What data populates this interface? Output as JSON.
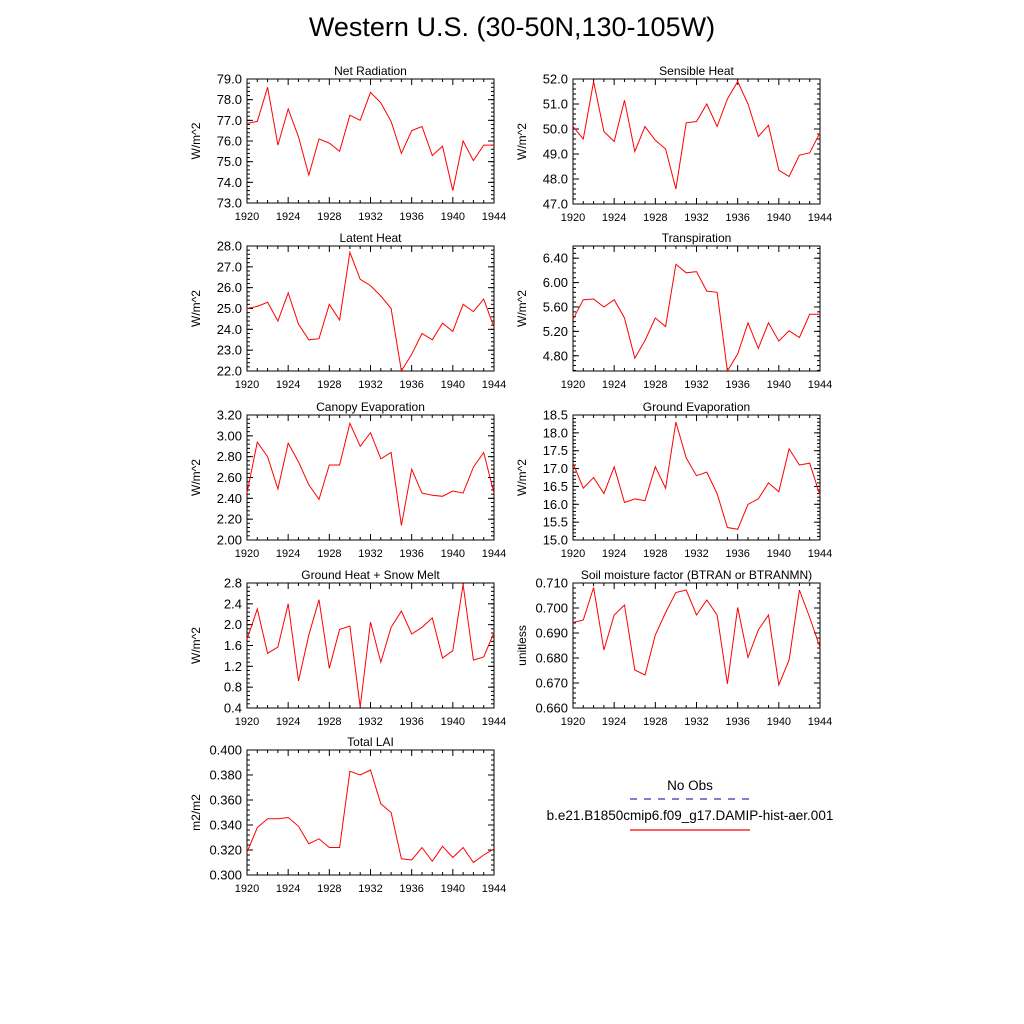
{
  "title": "Western U.S. (30-50N,130-105W)",
  "legend": {
    "obs_label": "No Obs",
    "obs_color": "#3333aa",
    "model_label": "b.e21.B1850cmip6.f09_g17.DAMIP-hist-aer.001",
    "model_color": "#ff0000"
  },
  "chart_data": [
    {
      "type": "line",
      "title": "Net Radiation",
      "ylabel": "W/m^2",
      "x": [
        1920,
        1921,
        1922,
        1923,
        1924,
        1925,
        1926,
        1927,
        1928,
        1929,
        1930,
        1931,
        1932,
        1933,
        1934,
        1935,
        1936,
        1937,
        1938,
        1939,
        1940,
        1941,
        1942,
        1943,
        1944
      ],
      "xticks": [
        1920,
        1924,
        1928,
        1932,
        1936,
        1940,
        1944
      ],
      "xlim": [
        1920,
        1944
      ],
      "ylim": [
        73.0,
        79.0
      ],
      "yticks": [
        "73.0",
        "74.0",
        "75.0",
        "76.0",
        "77.0",
        "78.0",
        "79.0"
      ],
      "series": [
        {
          "color": "#ff0000",
          "values": [
            76.85,
            76.95,
            78.6,
            75.8,
            77.55,
            76.2,
            74.35,
            76.1,
            75.9,
            75.5,
            77.25,
            77.0,
            78.35,
            77.85,
            76.95,
            75.4,
            76.5,
            76.7,
            75.3,
            75.75,
            73.6,
            76.0,
            75.05,
            75.8,
            75.8
          ]
        }
      ]
    },
    {
      "type": "line",
      "title": "Sensible Heat",
      "ylabel": "W/m^2",
      "x": [
        1920,
        1921,
        1922,
        1923,
        1924,
        1925,
        1926,
        1927,
        1928,
        1929,
        1930,
        1931,
        1932,
        1933,
        1934,
        1935,
        1936,
        1937,
        1938,
        1939,
        1940,
        1941,
        1942,
        1943,
        1944
      ],
      "xticks": [
        1920,
        1924,
        1928,
        1932,
        1936,
        1940,
        1944
      ],
      "xlim": [
        1920,
        1944
      ],
      "ylim": [
        47.0,
        52.0
      ],
      "yticks": [
        "47.0",
        "48.0",
        "49.0",
        "50.0",
        "51.0",
        "52.0"
      ],
      "series": [
        {
          "color": "#ff0000",
          "values": [
            50.1,
            49.6,
            51.9,
            49.9,
            49.5,
            51.15,
            49.1,
            50.1,
            49.55,
            49.2,
            47.6,
            50.25,
            50.3,
            51.0,
            50.1,
            51.2,
            51.9,
            51.0,
            49.7,
            50.15,
            48.35,
            48.1,
            48.95,
            49.05,
            49.85
          ]
        }
      ]
    },
    {
      "type": "line",
      "title": "Latent Heat",
      "ylabel": "W/m^2",
      "x": [
        1920,
        1921,
        1922,
        1923,
        1924,
        1925,
        1926,
        1927,
        1928,
        1929,
        1930,
        1931,
        1932,
        1933,
        1934,
        1935,
        1936,
        1937,
        1938,
        1939,
        1940,
        1941,
        1942,
        1943,
        1944
      ],
      "xticks": [
        1920,
        1924,
        1928,
        1932,
        1936,
        1940,
        1944
      ],
      "xlim": [
        1920,
        1944
      ],
      "ylim": [
        22.0,
        28.0
      ],
      "yticks": [
        "22.0",
        "23.0",
        "24.0",
        "25.0",
        "26.0",
        "27.0",
        "28.0"
      ],
      "series": [
        {
          "color": "#ff0000",
          "values": [
            25.0,
            25.1,
            25.3,
            24.4,
            25.75,
            24.25,
            23.5,
            23.55,
            25.2,
            24.45,
            27.7,
            26.4,
            26.1,
            25.6,
            25.0,
            22.0,
            22.8,
            23.8,
            23.5,
            24.3,
            23.9,
            25.2,
            24.85,
            25.45,
            24.1
          ]
        }
      ]
    },
    {
      "type": "line",
      "title": "Transpiration",
      "ylabel": "W/m^2",
      "x": [
        1920,
        1921,
        1922,
        1923,
        1924,
        1925,
        1926,
        1927,
        1928,
        1929,
        1930,
        1931,
        1932,
        1933,
        1934,
        1935,
        1936,
        1937,
        1938,
        1939,
        1940,
        1941,
        1942,
        1943,
        1944
      ],
      "xticks": [
        1920,
        1924,
        1928,
        1932,
        1936,
        1940,
        1944
      ],
      "xlim": [
        1920,
        1944
      ],
      "ylim": [
        4.55,
        6.6
      ],
      "yticks": [
        "4.80",
        "5.20",
        "5.60",
        "6.00",
        "6.40"
      ],
      "series": [
        {
          "color": "#ff0000",
          "values": [
            5.4,
            5.72,
            5.73,
            5.6,
            5.72,
            5.42,
            4.76,
            5.05,
            5.42,
            5.28,
            6.3,
            6.16,
            6.18,
            5.86,
            5.84,
            4.55,
            4.83,
            5.34,
            4.92,
            5.34,
            5.04,
            5.21,
            5.1,
            5.48,
            5.48
          ]
        }
      ]
    },
    {
      "type": "line",
      "title": "Canopy Evaporation",
      "ylabel": "W/m^2",
      "x": [
        1920,
        1921,
        1922,
        1923,
        1924,
        1925,
        1926,
        1927,
        1928,
        1929,
        1930,
        1931,
        1932,
        1933,
        1934,
        1935,
        1936,
        1937,
        1938,
        1939,
        1940,
        1941,
        1942,
        1943,
        1944
      ],
      "xticks": [
        1920,
        1924,
        1928,
        1932,
        1936,
        1940,
        1944
      ],
      "xlim": [
        1920,
        1944
      ],
      "ylim": [
        2.0,
        3.2
      ],
      "yticks": [
        "2.00",
        "2.20",
        "2.40",
        "2.60",
        "2.80",
        "3.00",
        "3.20"
      ],
      "series": [
        {
          "color": "#ff0000",
          "values": [
            2.45,
            2.94,
            2.8,
            2.49,
            2.93,
            2.75,
            2.53,
            2.39,
            2.72,
            2.72,
            3.12,
            2.9,
            3.03,
            2.78,
            2.84,
            2.14,
            2.68,
            2.45,
            2.43,
            2.42,
            2.47,
            2.45,
            2.7,
            2.84,
            2.45
          ]
        }
      ]
    },
    {
      "type": "line",
      "title": "Ground Evaporation",
      "ylabel": "W/m^2",
      "x": [
        1920,
        1921,
        1922,
        1923,
        1924,
        1925,
        1926,
        1927,
        1928,
        1929,
        1930,
        1931,
        1932,
        1933,
        1934,
        1935,
        1936,
        1937,
        1938,
        1939,
        1940,
        1941,
        1942,
        1943,
        1944
      ],
      "xticks": [
        1920,
        1924,
        1928,
        1932,
        1936,
        1940,
        1944
      ],
      "xlim": [
        1920,
        1944
      ],
      "ylim": [
        15.0,
        18.5
      ],
      "yticks": [
        "15.0",
        "15.5",
        "16.0",
        "16.5",
        "17.0",
        "17.5",
        "18.0",
        "18.5"
      ],
      "series": [
        {
          "color": "#ff0000",
          "values": [
            17.15,
            16.45,
            16.75,
            16.3,
            17.05,
            16.05,
            16.15,
            16.1,
            17.05,
            16.45,
            18.3,
            17.3,
            16.8,
            16.9,
            16.3,
            15.35,
            15.3,
            16.0,
            16.15,
            16.6,
            16.35,
            17.55,
            17.1,
            17.15,
            16.25
          ]
        }
      ]
    },
    {
      "type": "line",
      "title": "Ground Heat + Snow Melt",
      "ylabel": "W/m^2",
      "x": [
        1920,
        1921,
        1922,
        1923,
        1924,
        1925,
        1926,
        1927,
        1928,
        1929,
        1930,
        1931,
        1932,
        1933,
        1934,
        1935,
        1936,
        1937,
        1938,
        1939,
        1940,
        1941,
        1942,
        1943,
        1944
      ],
      "xticks": [
        1920,
        1924,
        1928,
        1932,
        1936,
        1940,
        1944
      ],
      "xlim": [
        1920,
        1944
      ],
      "ylim": [
        0.4,
        2.8
      ],
      "yticks": [
        "0.4",
        "0.8",
        "1.2",
        "1.6",
        "2.0",
        "2.4",
        "2.8"
      ],
      "series": [
        {
          "color": "#ff0000",
          "values": [
            1.72,
            2.3,
            1.45,
            1.57,
            2.4,
            0.92,
            1.8,
            2.48,
            1.16,
            1.91,
            1.97,
            0.42,
            2.05,
            1.28,
            1.95,
            2.26,
            1.82,
            1.95,
            2.13,
            1.36,
            1.5,
            2.77,
            1.32,
            1.38,
            1.85
          ]
        }
      ]
    },
    {
      "type": "line",
      "title": "Soil moisture factor (BTRAN or BTRANMN)",
      "ylabel": "unitless",
      "x": [
        1920,
        1921,
        1922,
        1923,
        1924,
        1925,
        1926,
        1927,
        1928,
        1929,
        1930,
        1931,
        1932,
        1933,
        1934,
        1935,
        1936,
        1937,
        1938,
        1939,
        1940,
        1941,
        1942,
        1943,
        1944
      ],
      "xticks": [
        1920,
        1924,
        1928,
        1932,
        1936,
        1940,
        1944
      ],
      "xlim": [
        1920,
        1944
      ],
      "ylim": [
        0.66,
        0.71
      ],
      "yticks": [
        "0.660",
        "0.670",
        "0.680",
        "0.690",
        "0.700",
        "0.710"
      ],
      "series": [
        {
          "color": "#ff0000",
          "values": [
            0.6942,
            0.6952,
            0.7082,
            0.6832,
            0.6972,
            0.7012,
            0.6752,
            0.6732,
            0.6892,
            0.6982,
            0.7062,
            0.7072,
            0.6972,
            0.7032,
            0.6972,
            0.6697,
            0.7002,
            0.6802,
            0.6912,
            0.6972,
            0.6692,
            0.6792,
            0.7072,
            0.6962,
            0.6842
          ]
        }
      ]
    },
    {
      "type": "line",
      "title": "Total LAI",
      "ylabel": "m2/m2",
      "x": [
        1920,
        1921,
        1922,
        1923,
        1924,
        1925,
        1926,
        1927,
        1928,
        1929,
        1930,
        1931,
        1932,
        1933,
        1934,
        1935,
        1936,
        1937,
        1938,
        1939,
        1940,
        1941,
        1942,
        1943,
        1944
      ],
      "xticks": [
        1920,
        1924,
        1928,
        1932,
        1936,
        1940,
        1944
      ],
      "xlim": [
        1920,
        1944
      ],
      "ylim": [
        0.3,
        0.4
      ],
      "yticks": [
        "0.300",
        "0.320",
        "0.340",
        "0.360",
        "0.380",
        "0.400"
      ],
      "series": [
        {
          "color": "#ff0000",
          "values": [
            0.318,
            0.338,
            0.345,
            0.345,
            0.346,
            0.339,
            0.325,
            0.329,
            0.322,
            0.322,
            0.383,
            0.38,
            0.384,
            0.357,
            0.35,
            0.313,
            0.312,
            0.322,
            0.311,
            0.323,
            0.314,
            0.322,
            0.31,
            0.316,
            0.321
          ]
        }
      ]
    }
  ]
}
